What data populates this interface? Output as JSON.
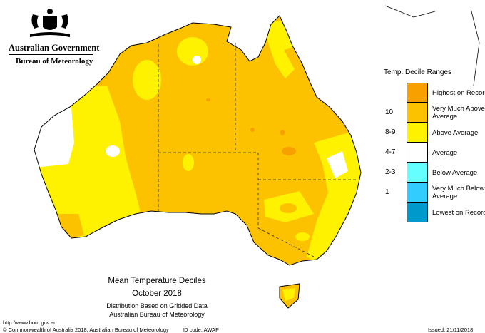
{
  "header": {
    "government": "Australian Government",
    "bureau": "Bureau of Meteorology"
  },
  "legend": {
    "title": "Temp. Decile Ranges",
    "items": [
      {
        "range": "",
        "label": "Highest on Record",
        "color": "#f7a000"
      },
      {
        "range": "10",
        "label": "Very Much Above Average",
        "color": "#fcc200"
      },
      {
        "range": "8-9",
        "label": "Above Average",
        "color": "#fff200"
      },
      {
        "range": "4-7",
        "label": "Average",
        "color": "#ffffff"
      },
      {
        "range": "2-3",
        "label": "Below Average",
        "color": "#66ffff"
      },
      {
        "range": "1",
        "label": "Very Much Below Average",
        "color": "#33ccff"
      },
      {
        "range": "",
        "label": "Lowest on Record",
        "color": "#0099cc"
      }
    ]
  },
  "map": {
    "title": "Mean Temperature Deciles",
    "period": "October 2018",
    "note1": "Distribution Based on Gridded Data",
    "note2": "Australian Bureau of Meteorology"
  },
  "footer": {
    "url": "http://www.bom.gov.au",
    "copyright": "© Commonwealth of Australia 2018, Australian Bureau of Meteorology",
    "id_code": "ID code: AWAP",
    "issued": "Issued: 21/11/2018"
  },
  "colors": {
    "highest": "#f7a000",
    "very_much_above": "#fcc200",
    "above": "#fff200",
    "average": "#ffffff"
  }
}
